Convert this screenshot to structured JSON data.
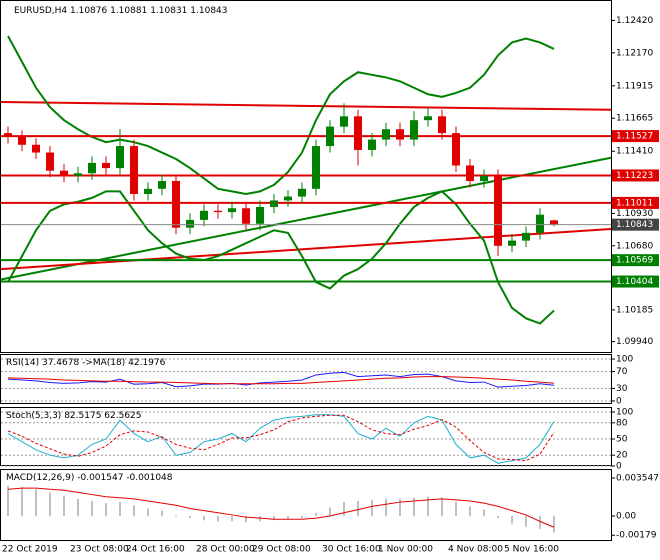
{
  "chart_data": [
    {
      "type": "candlestick",
      "title": "EURUSD,H4",
      "categories": [
        "22 Oct 2019",
        null,
        null,
        null,
        null,
        "23 Oct 08:00",
        null,
        null,
        null,
        "24 Oct 16:00",
        null,
        null,
        null,
        null,
        "28 Oct 00:00",
        null,
        null,
        null,
        "29 Oct 08:00",
        null,
        null,
        null,
        null,
        "30 Oct 16:00",
        null,
        null,
        null,
        "1 Nov 00:00",
        null,
        null,
        null,
        null,
        "4 Nov 08:00",
        null,
        null,
        null,
        "5 Nov 16:00",
        null,
        null,
        null
      ],
      "open": [
        1.1155,
        1.1152,
        1.1146,
        1.114,
        1.1126,
        1.1122,
        1.1124,
        1.1132,
        1.1128,
        1.1145,
        1.1108,
        1.1112,
        1.1118,
        1.1082,
        1.1088,
        1.1095,
        1.1094,
        1.1097,
        1.1085,
        1.1098,
        1.1103,
        1.1106,
        1.1112,
        1.1145,
        1.116,
        1.1168,
        1.1142,
        1.115,
        1.1158,
        1.115,
        1.1165,
        1.1168,
        1.1155,
        1.113,
        1.1118,
        1.1122,
        1.1068,
        1.1072,
        1.1078,
        1.10876
      ],
      "high": [
        1.116,
        1.1157,
        1.1151,
        1.1145,
        1.1131,
        1.1129,
        1.1137,
        1.1137,
        1.1158,
        1.115,
        1.1117,
        1.1123,
        1.1123,
        1.1093,
        1.11,
        1.11,
        1.1102,
        1.1102,
        1.1103,
        1.1108,
        1.1111,
        1.1117,
        1.115,
        1.1165,
        1.1178,
        1.1173,
        1.1155,
        1.1163,
        1.1163,
        1.1172,
        1.1175,
        1.1173,
        1.116,
        1.1135,
        1.1127,
        1.1127,
        1.1077,
        1.1083,
        1.1097,
        1.10881
      ],
      "low": [
        1.1147,
        1.1141,
        1.1135,
        1.1121,
        1.1117,
        1.1117,
        1.1119,
        1.1123,
        1.1123,
        1.1103,
        1.1103,
        1.1107,
        1.1077,
        1.1077,
        1.1083,
        1.1089,
        1.1089,
        1.108,
        1.108,
        1.1093,
        1.1098,
        1.1101,
        1.1107,
        1.114,
        1.1155,
        1.113,
        1.1137,
        1.1145,
        1.1145,
        1.1145,
        1.116,
        1.115,
        1.1125,
        1.1113,
        1.1113,
        1.106,
        1.1063,
        1.1067,
        1.1073,
        1.10831
      ],
      "close": [
        1.1152,
        1.1146,
        1.114,
        1.1126,
        1.1122,
        1.1124,
        1.1132,
        1.1128,
        1.1145,
        1.1108,
        1.1112,
        1.1118,
        1.1082,
        1.1088,
        1.1095,
        1.1094,
        1.1097,
        1.1085,
        1.1098,
        1.1103,
        1.1106,
        1.1112,
        1.1145,
        1.116,
        1.1168,
        1.1142,
        1.115,
        1.1158,
        1.115,
        1.1165,
        1.1168,
        1.1155,
        1.113,
        1.1118,
        1.1122,
        1.1068,
        1.1072,
        1.1078,
        1.1092,
        1.10843
      ],
      "up_color": "#008000",
      "down_color": "#e00000",
      "ylim": [
        1.0986,
        1.1257
      ],
      "yticks": [
        {
          "value": 1.1242,
          "label": "1.12420"
        },
        {
          "value": 1.1217,
          "label": "1.12170"
        },
        1.11915,
        1.11665,
        {
          "value": 1.1141,
          "label": "1.11410"
        },
        {
          "value": 1.1093,
          "label": "1.10930"
        },
        {
          "value": 1.1068,
          "label": "1.10680"
        },
        1.10185,
        {
          "value": 1.0994,
          "label": "1.09940"
        }
      ],
      "levels": [
        {
          "value": 1.11527,
          "color": "#e00000"
        },
        {
          "value": 1.11223,
          "color": "#e00000"
        },
        {
          "value": 1.11011,
          "color": "#e00000"
        },
        {
          "value": 1.10569,
          "color": "#008000"
        },
        {
          "value": 1.10404,
          "color": "#008000"
        }
      ],
      "trendlines": [
        {
          "start": 1.1179,
          "end": 1.1173,
          "color": "#e00000"
        },
        {
          "start": 1.1042,
          "end": 1.1136,
          "color": "#008000"
        },
        {
          "start": 1.105,
          "end": 1.1081,
          "color": "#e00000"
        }
      ],
      "series": [
        {
          "color": "#008000",
          "values": [
            1.123,
            1.121,
            1.119,
            1.1175,
            1.1165,
            1.1158,
            1.1152,
            1.1148,
            1.115,
            1.1148,
            1.1145,
            1.114,
            1.1135,
            1.1128,
            1.112,
            1.1112,
            1.111,
            1.1108,
            1.111,
            1.1115,
            1.1125,
            1.114,
            1.1165,
            1.1185,
            1.1195,
            1.1202,
            1.12,
            1.1198,
            1.1195,
            1.119,
            1.1185,
            1.1183,
            1.1186,
            1.119,
            1.12,
            1.1215,
            1.1225,
            1.1228,
            1.1225,
            1.122
          ]
        },
        {
          "color": "#008000",
          "values": [
            1.104,
            1.106,
            1.108,
            1.1095,
            1.11,
            1.1102,
            1.1105,
            1.111,
            1.111,
            1.1095,
            1.108,
            1.107,
            1.1062,
            1.1058,
            1.1057,
            1.106,
            1.1065,
            1.107,
            1.1075,
            1.108,
            1.1078,
            1.106,
            1.104,
            1.1035,
            1.1045,
            1.105,
            1.1058,
            1.107,
            1.1085,
            1.1098,
            1.1105,
            1.111,
            1.11,
            1.1085,
            1.1072,
            1.104,
            1.102,
            1.1012,
            1.1008,
            1.1018
          ]
        }
      ]
    },
    {
      "type": "line",
      "series": [
        {
          "name": "RSI(14)",
          "color": "#1a1aff",
          "values": [
            52,
            50,
            48,
            44,
            42,
            43,
            46,
            45,
            52,
            40,
            41,
            44,
            34,
            36,
            40,
            40,
            42,
            38,
            43,
            45,
            47,
            50,
            62,
            66,
            68,
            58,
            60,
            62,
            58,
            63,
            64,
            58,
            48,
            44,
            45,
            33,
            35,
            37,
            41,
            37.4678
          ]
        },
        {
          "name": "->MA(18)",
          "color": "#e00000",
          "values": [
            55,
            54,
            53,
            52,
            50,
            49,
            48,
            47,
            47,
            46,
            45,
            45,
            44,
            43,
            42,
            41,
            41,
            41,
            41,
            41,
            42,
            42,
            44,
            46,
            48,
            50,
            52,
            54,
            55,
            57,
            58,
            58,
            57,
            56,
            54,
            52,
            50,
            47,
            45,
            42.1976
          ]
        }
      ],
      "ylim": [
        -4.8,
        109.5
      ],
      "yticks": [
        100,
        70,
        30,
        0
      ],
      "grid": true
    },
    {
      "type": "line",
      "title": "Stoch(5,3,3)",
      "series": [
        {
          "color": "#20b0d0",
          "values": [
            60,
            45,
            30,
            20,
            15,
            20,
            40,
            50,
            85,
            60,
            45,
            55,
            20,
            25,
            45,
            50,
            60,
            45,
            70,
            85,
            90,
            92,
            95,
            95,
            92,
            60,
            50,
            70,
            55,
            80,
            92,
            85,
            40,
            15,
            20,
            5,
            10,
            15,
            40,
            82.5175
          ]
        },
        {
          "color": "#e00000",
          "dashed": true,
          "values": [
            65,
            55,
            42,
            32,
            22,
            18,
            25,
            37,
            58,
            65,
            63,
            53,
            40,
            33,
            30,
            40,
            52,
            52,
            58,
            67,
            82,
            89,
            92,
            94,
            94,
            82,
            67,
            60,
            58,
            68,
            75,
            86,
            72,
            47,
            25,
            13,
            12,
            10,
            22,
            62.5625
          ]
        }
      ],
      "ylim": [
        0,
        107.4
      ],
      "yticks": [
        100,
        80,
        50,
        20,
        0
      ],
      "grid": true
    },
    {
      "type": "macd",
      "title": "MACD(12,26,9)",
      "series": [
        {
          "color": "#c0c0c0",
          "values": [
            0.0028,
            0.0027,
            0.0025,
            0.0022,
            0.0019,
            0.0016,
            0.0014,
            0.0012,
            0.0013,
            0.001,
            0.0007,
            0.0005,
            0.0001,
            -0.0002,
            -0.0004,
            -0.0005,
            -0.0005,
            -0.0006,
            -0.0005,
            -0.0004,
            -0.0003,
            -0.0002,
            0.0003,
            0.0008,
            0.0013,
            0.0014,
            0.0015,
            0.0016,
            0.0016,
            0.0017,
            0.0018,
            0.0017,
            0.0013,
            0.0009,
            0.0006,
            -0.0002,
            -0.0007,
            -0.001,
            -0.0012,
            -0.001547
          ]
        },
        {
          "color": "#e00000",
          "values": [
            0.0025,
            0.0026,
            0.0026,
            0.0025,
            0.0024,
            0.0022,
            0.002,
            0.0018,
            0.0017,
            0.0016,
            0.0014,
            0.0012,
            0.001,
            0.0007,
            0.0005,
            0.0003,
            0.0001,
            -0.0001,
            -0.0002,
            -0.0003,
            -0.0003,
            -0.0003,
            -0.0002,
            0,
            0.0003,
            0.0006,
            0.0009,
            0.0011,
            0.0013,
            0.0014,
            0.0015,
            0.0016,
            0.0015,
            0.0014,
            0.0012,
            0.0009,
            0.0005,
            0.0001,
            -0.0005,
            -0.001048
          ]
        }
      ],
      "ylim": [
        -0.00233,
        0.00429
      ],
      "yticks": [
        0.003547,
        {
          "value": 0,
          "label": "0.00"
        },
        -0.00179
      ]
    }
  ]
}
